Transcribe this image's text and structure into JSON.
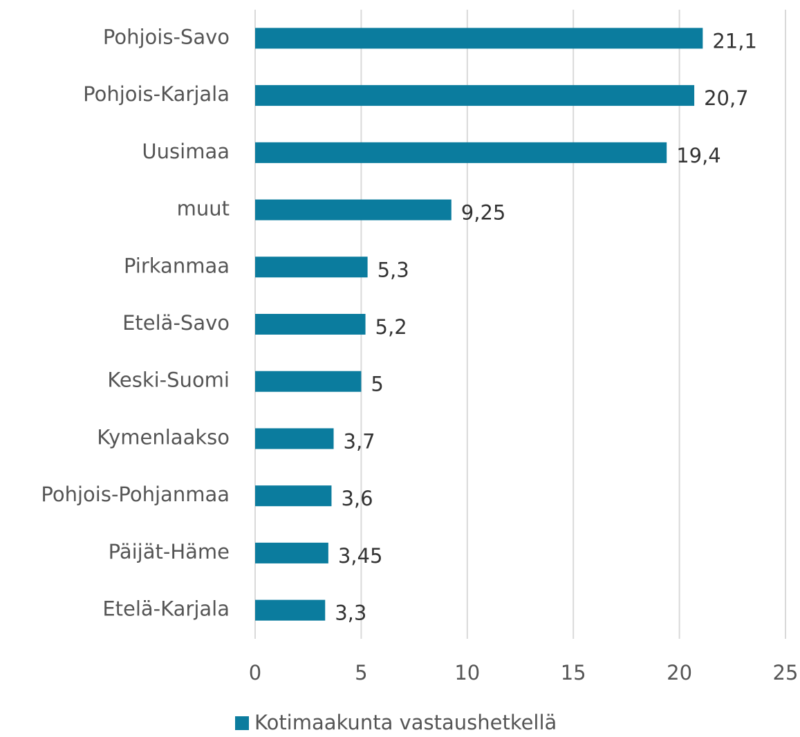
{
  "chart_data": {
    "type": "bar",
    "orientation": "horizontal",
    "categories": [
      "Pohjois-Savo",
      "Pohjois-Karjala",
      "Uusimaa",
      "muut",
      "Pirkanmaa",
      "Etelä-Savo",
      "Keski-Suomi",
      "Kymenlaakso",
      "Pohjois-Pohjanmaa",
      "Päijät-Häme",
      "Etelä-Karjala"
    ],
    "series": [
      {
        "name": "Kotimaakunta vastaushetkellä",
        "color": "#0b7c9e",
        "values": [
          21.1,
          20.7,
          19.4,
          9.25,
          5.3,
          5.2,
          5,
          3.7,
          3.6,
          3.45,
          3.3
        ],
        "value_labels": [
          "21,1",
          "20,7",
          "19,4",
          "9,25",
          "5,3",
          "5,2",
          "5",
          "3,7",
          "3,6",
          "3,45",
          "3,3"
        ]
      }
    ],
    "xlim": [
      0,
      25
    ],
    "xticks": [
      0,
      5,
      10,
      15,
      20,
      25
    ],
    "grid": true,
    "legend": "bottom"
  }
}
